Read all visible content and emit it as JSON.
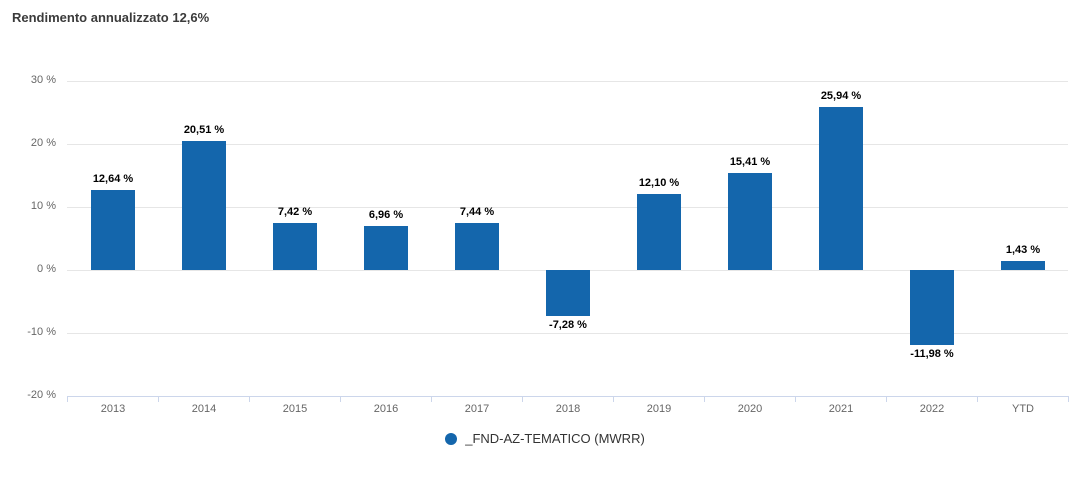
{
  "title": "Rendimento annualizzato 12,6%",
  "export_menu": {
    "icon": "hamburger-menu-icon"
  },
  "legend": {
    "marker_icon": "circle-icon",
    "label": "_FND-AZ-TEMATICO (MWRR)"
  },
  "colors": {
    "bar": "#1466ac",
    "grid_line": "#e6e6e6",
    "axis_line": "#ccd6eb",
    "axis_text": "#666666",
    "title_text": "#3b3b3b",
    "data_label_text": "#000000",
    "legend_text": "#333333",
    "menu_icon": "#666666"
  },
  "chart_data": {
    "type": "bar",
    "title": "Rendimento annualizzato 12,6%",
    "categories": [
      "2013",
      "2014",
      "2015",
      "2016",
      "2017",
      "2018",
      "2019",
      "2020",
      "2021",
      "2022",
      "YTD"
    ],
    "values": [
      12.64,
      20.51,
      7.42,
      6.96,
      7.44,
      -7.28,
      12.1,
      15.41,
      25.94,
      -11.98,
      1.43
    ],
    "value_labels": [
      "12,64 %",
      "20,51 %",
      "7,42 %",
      "6,96 %",
      "7,44 %",
      "-7,28 %",
      "12,10 %",
      "15,41 %",
      "25,94 %",
      "-11,98 %",
      "1,43 %"
    ],
    "series": [
      {
        "name": "_FND-AZ-TEMATICO (MWRR)",
        "values": [
          12.64,
          20.51,
          7.42,
          6.96,
          7.44,
          -7.28,
          12.1,
          15.41,
          25.94,
          -11.98,
          1.43
        ]
      }
    ],
    "xlabel": "",
    "ylabel": "",
    "ylim": [
      -20,
      30
    ],
    "yticks": [
      30,
      20,
      10,
      0,
      -10,
      -20
    ],
    "ytick_labels": [
      "30 %",
      "20 %",
      "10 %",
      "0 %",
      "-10 %",
      "-20 %"
    ],
    "grid": true,
    "legend_position": "bottom-center"
  }
}
